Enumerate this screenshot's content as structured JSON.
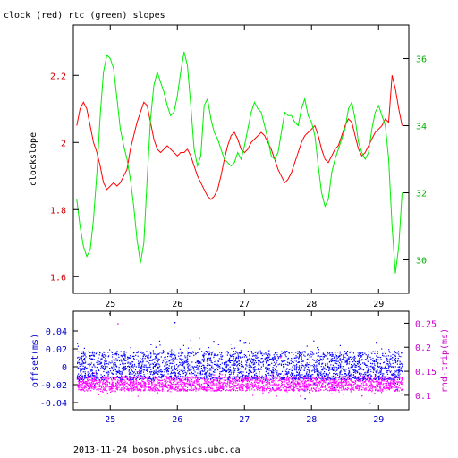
{
  "chart_data": [
    {
      "type": "line",
      "title": "clock (red) rtc (green) slopes",
      "ylabel_left": "clockslope",
      "xlim": [
        24.45,
        29.45
      ],
      "ylim_left": [
        1.55,
        2.35
      ],
      "ylim_right": [
        29.0,
        37.0
      ],
      "x_ticks": [
        "25",
        "26",
        "27",
        "28",
        "29"
      ],
      "y_left_ticks": [
        "1.6",
        "1.8",
        "2",
        "2.2"
      ],
      "y_right_ticks": [
        "30",
        "32",
        "34",
        "36"
      ],
      "colors": {
        "left_axis": "#cc0000",
        "right_axis": "#00aa00"
      },
      "series": [
        {
          "name": "clock",
          "color": "#ff0000",
          "axis": "left",
          "x": [
            24.5,
            24.55,
            24.6,
            24.65,
            24.7,
            24.75,
            24.8,
            24.85,
            24.9,
            24.95,
            25.0,
            25.05,
            25.1,
            25.15,
            25.2,
            25.25,
            25.3,
            25.35,
            25.4,
            25.45,
            25.5,
            25.55,
            25.6,
            25.65,
            25.7,
            25.75,
            25.8,
            25.85,
            25.9,
            25.95,
            26.0,
            26.05,
            26.1,
            26.15,
            26.2,
            26.25,
            26.3,
            26.35,
            26.4,
            26.45,
            26.5,
            26.55,
            26.6,
            26.65,
            26.7,
            26.75,
            26.8,
            26.85,
            26.9,
            26.95,
            27.0,
            27.05,
            27.1,
            27.15,
            27.2,
            27.25,
            27.3,
            27.35,
            27.4,
            27.45,
            27.5,
            27.55,
            27.6,
            27.65,
            27.7,
            27.75,
            27.8,
            27.85,
            27.9,
            27.95,
            28.0,
            28.05,
            28.1,
            28.15,
            28.2,
            28.25,
            28.3,
            28.35,
            28.4,
            28.45,
            28.5,
            28.55,
            28.6,
            28.65,
            28.7,
            28.75,
            28.8,
            28.85,
            28.9,
            28.95,
            29.0,
            29.05,
            29.1,
            29.15,
            29.2,
            29.25,
            29.3,
            29.35
          ],
          "y": [
            2.05,
            2.1,
            2.12,
            2.1,
            2.05,
            2.0,
            1.97,
            1.93,
            1.88,
            1.86,
            1.87,
            1.88,
            1.87,
            1.88,
            1.9,
            1.92,
            1.98,
            2.02,
            2.06,
            2.09,
            2.12,
            2.11,
            2.06,
            2.01,
            1.98,
            1.97,
            1.98,
            1.99,
            1.98,
            1.97,
            1.96,
            1.97,
            1.97,
            1.98,
            1.96,
            1.93,
            1.9,
            1.88,
            1.86,
            1.84,
            1.83,
            1.84,
            1.86,
            1.9,
            1.95,
            1.99,
            2.02,
            2.03,
            2.01,
            1.98,
            1.97,
            1.98,
            2.0,
            2.01,
            2.02,
            2.03,
            2.02,
            2.0,
            1.98,
            1.95,
            1.92,
            1.9,
            1.88,
            1.89,
            1.91,
            1.94,
            1.97,
            2.0,
            2.02,
            2.03,
            2.04,
            2.05,
            2.02,
            1.98,
            1.95,
            1.94,
            1.96,
            1.98,
            1.99,
            2.02,
            2.05,
            2.07,
            2.06,
            2.02,
            1.98,
            1.96,
            1.97,
            1.99,
            2.01,
            2.03,
            2.04,
            2.05,
            2.07,
            2.06,
            2.2,
            2.16,
            2.1,
            2.05
          ]
        },
        {
          "name": "rtc",
          "color": "#00ee00",
          "axis": "right",
          "x": [
            24.5,
            24.55,
            24.6,
            24.65,
            24.7,
            24.75,
            24.8,
            24.85,
            24.9,
            24.95,
            25.0,
            25.05,
            25.1,
            25.15,
            25.2,
            25.25,
            25.3,
            25.35,
            25.4,
            25.45,
            25.5,
            25.55,
            25.6,
            25.65,
            25.7,
            25.75,
            25.8,
            25.85,
            25.9,
            25.95,
            26.0,
            26.05,
            26.1,
            26.15,
            26.2,
            26.25,
            26.3,
            26.35,
            26.4,
            26.45,
            26.5,
            26.55,
            26.6,
            26.65,
            26.7,
            26.75,
            26.8,
            26.85,
            26.9,
            26.95,
            27.0,
            27.05,
            27.1,
            27.15,
            27.2,
            27.25,
            27.3,
            27.35,
            27.4,
            27.45,
            27.5,
            27.55,
            27.6,
            27.65,
            27.7,
            27.75,
            27.8,
            27.85,
            27.9,
            27.95,
            28.0,
            28.05,
            28.1,
            28.15,
            28.2,
            28.25,
            28.3,
            28.35,
            28.4,
            28.45,
            28.5,
            28.55,
            28.6,
            28.65,
            28.7,
            28.75,
            28.8,
            28.85,
            28.9,
            28.95,
            29.0,
            29.05,
            29.1,
            29.15,
            29.2,
            29.25,
            29.3,
            29.35
          ],
          "y": [
            31.8,
            31.0,
            30.4,
            30.1,
            30.3,
            31.2,
            32.6,
            34.3,
            35.6,
            36.1,
            36.0,
            35.7,
            34.8,
            33.9,
            33.4,
            33.0,
            32.4,
            31.6,
            30.6,
            29.9,
            30.5,
            32.4,
            34.2,
            35.2,
            35.6,
            35.3,
            35.0,
            34.6,
            34.3,
            34.4,
            34.9,
            35.6,
            36.2,
            35.8,
            34.6,
            33.3,
            32.8,
            33.1,
            34.6,
            34.8,
            34.2,
            33.8,
            33.6,
            33.3,
            33.0,
            32.9,
            32.8,
            32.9,
            33.2,
            33.0,
            33.4,
            33.9,
            34.4,
            34.7,
            34.5,
            34.4,
            34.0,
            33.6,
            33.1,
            33.0,
            33.2,
            33.8,
            34.4,
            34.3,
            34.3,
            34.1,
            34.0,
            34.5,
            34.8,
            34.3,
            34.1,
            33.7,
            32.8,
            32.0,
            31.6,
            31.8,
            32.6,
            33.0,
            33.3,
            33.6,
            33.9,
            34.5,
            34.7,
            34.2,
            33.5,
            33.2,
            33.0,
            33.2,
            33.9,
            34.4,
            34.6,
            34.3,
            34.0,
            33.0,
            31.0,
            29.6,
            30.4,
            32.0
          ]
        }
      ]
    },
    {
      "type": "scatter",
      "ylabel_left": "offset(ms)",
      "ylabel_right": "rnd-trip(ms)",
      "xlim": [
        24.45,
        29.45
      ],
      "ylim_left": [
        -0.048,
        0.062
      ],
      "ylim_right": [
        0.07,
        0.275
      ],
      "x_ticks": [
        "25",
        "26",
        "27",
        "28",
        "29"
      ],
      "y_left_ticks": [
        "-0.04",
        "-0.02",
        "0",
        "0.02",
        "0.04"
      ],
      "y_right_ticks": [
        "0.1",
        "0.15",
        "0.2",
        "0.25"
      ],
      "colors": {
        "left_axis": "#0000cc",
        "right_axis": "#cc00cc"
      },
      "series": [
        {
          "name": "offset",
          "color": "#0000ff",
          "axis": "left",
          "x_range": [
            24.5,
            29.35
          ],
          "band": [
            -0.014,
            0.018
          ],
          "y_outliers": [
            0.06,
            0.05,
            0.03,
            -0.035,
            -0.04
          ]
        },
        {
          "name": "rnd-trip",
          "color": "#ff00ff",
          "axis": "right",
          "x_range": [
            24.5,
            29.35
          ],
          "band": [
            0.11,
            0.14
          ],
          "y_outliers": [
            0.25,
            0.22,
            0.18,
            0.1
          ]
        }
      ]
    }
  ],
  "footer": "2013-11-24 boson.physics.ubc.ca"
}
